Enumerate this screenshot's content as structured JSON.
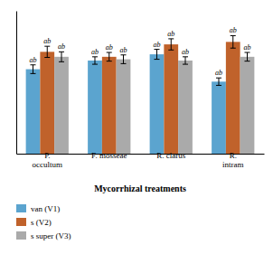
{
  "chart_data": {
    "type": "bar",
    "categories": [
      "P.\noccultum",
      "F. mosseae",
      "R. clarus",
      "R.\nintram"
    ],
    "series": [
      {
        "name": "van (V1)",
        "color": "#5BA4CF",
        "values": [
          6.8,
          7.5,
          8.0,
          5.8
        ],
        "errors": [
          0.35,
          0.3,
          0.4,
          0.3
        ]
      },
      {
        "name": "s (V2)",
        "color": "#C0622B",
        "values": [
          8.2,
          7.8,
          8.8,
          9.0
        ],
        "errors": [
          0.45,
          0.35,
          0.45,
          0.5
        ]
      },
      {
        "name": "s super (V3)",
        "color": "#AAAAAA",
        "values": [
          7.8,
          7.6,
          7.5,
          7.8
        ],
        "errors": [
          0.4,
          0.35,
          0.3,
          0.35
        ]
      }
    ],
    "xlabel": "Mycorrhizal treatments",
    "annotation": "ab",
    "ylim": [
      0,
      11.5
    ],
    "tick_labels": "x",
    "legend": "bottom"
  }
}
